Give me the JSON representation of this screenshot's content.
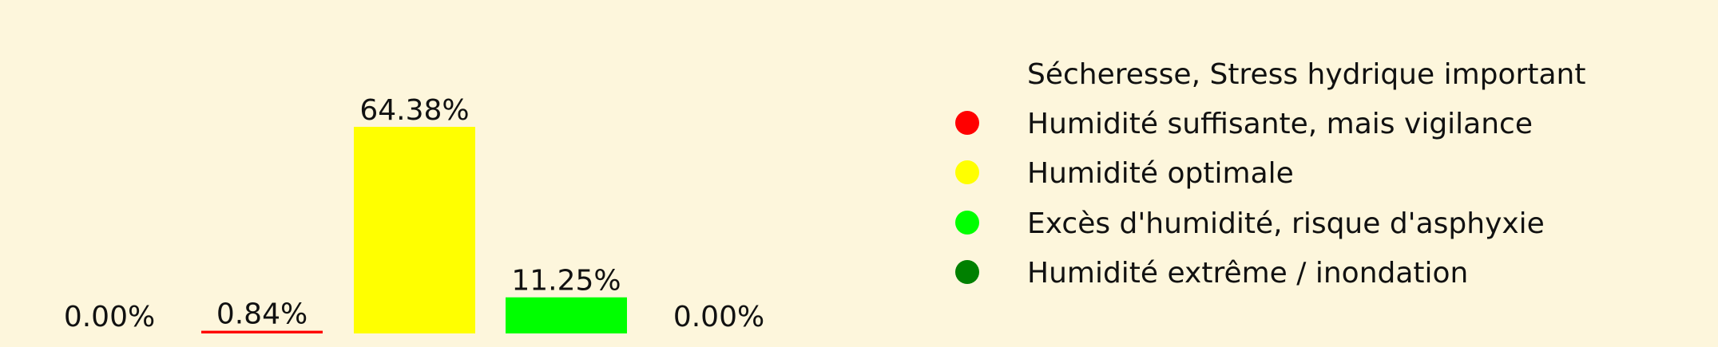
{
  "chart_data": {
    "type": "bar",
    "title": "",
    "xlabel": "",
    "ylabel": "",
    "ylim": [
      0,
      70
    ],
    "categories": [
      "Sécheresse, Stress hydrique important",
      "Humidité suffisante, mais vigilance",
      "Humidité optimale",
      "Excès d'humidité, risque d'asphyxie",
      "Humidité extrême / inondation"
    ],
    "values": [
      0.0,
      0.84,
      64.38,
      11.25,
      0.0
    ],
    "value_labels": [
      "0.00%",
      "0.84%",
      "64.38%",
      "11.25%",
      "0.00%"
    ],
    "colors": [
      "#8b4513",
      "#ff0000",
      "#ffff00",
      "#00ff00",
      "#008000"
    ],
    "legend": {
      "position": "right",
      "entries": [
        {
          "label": "Sécheresse, Stress hydrique important",
          "color": "#fdf6dc"
        },
        {
          "label": "Humidité suffisante, mais vigilance",
          "color": "#ff0000"
        },
        {
          "label": "Humidité optimale",
          "color": "#ffff00"
        },
        {
          "label": "Excès d'humidité, risque d'asphyxie",
          "color": "#00ff00"
        },
        {
          "label": "Humidité extrême / inondation",
          "color": "#008000"
        }
      ]
    },
    "background_color": "#fdf6dc",
    "grid": false
  }
}
